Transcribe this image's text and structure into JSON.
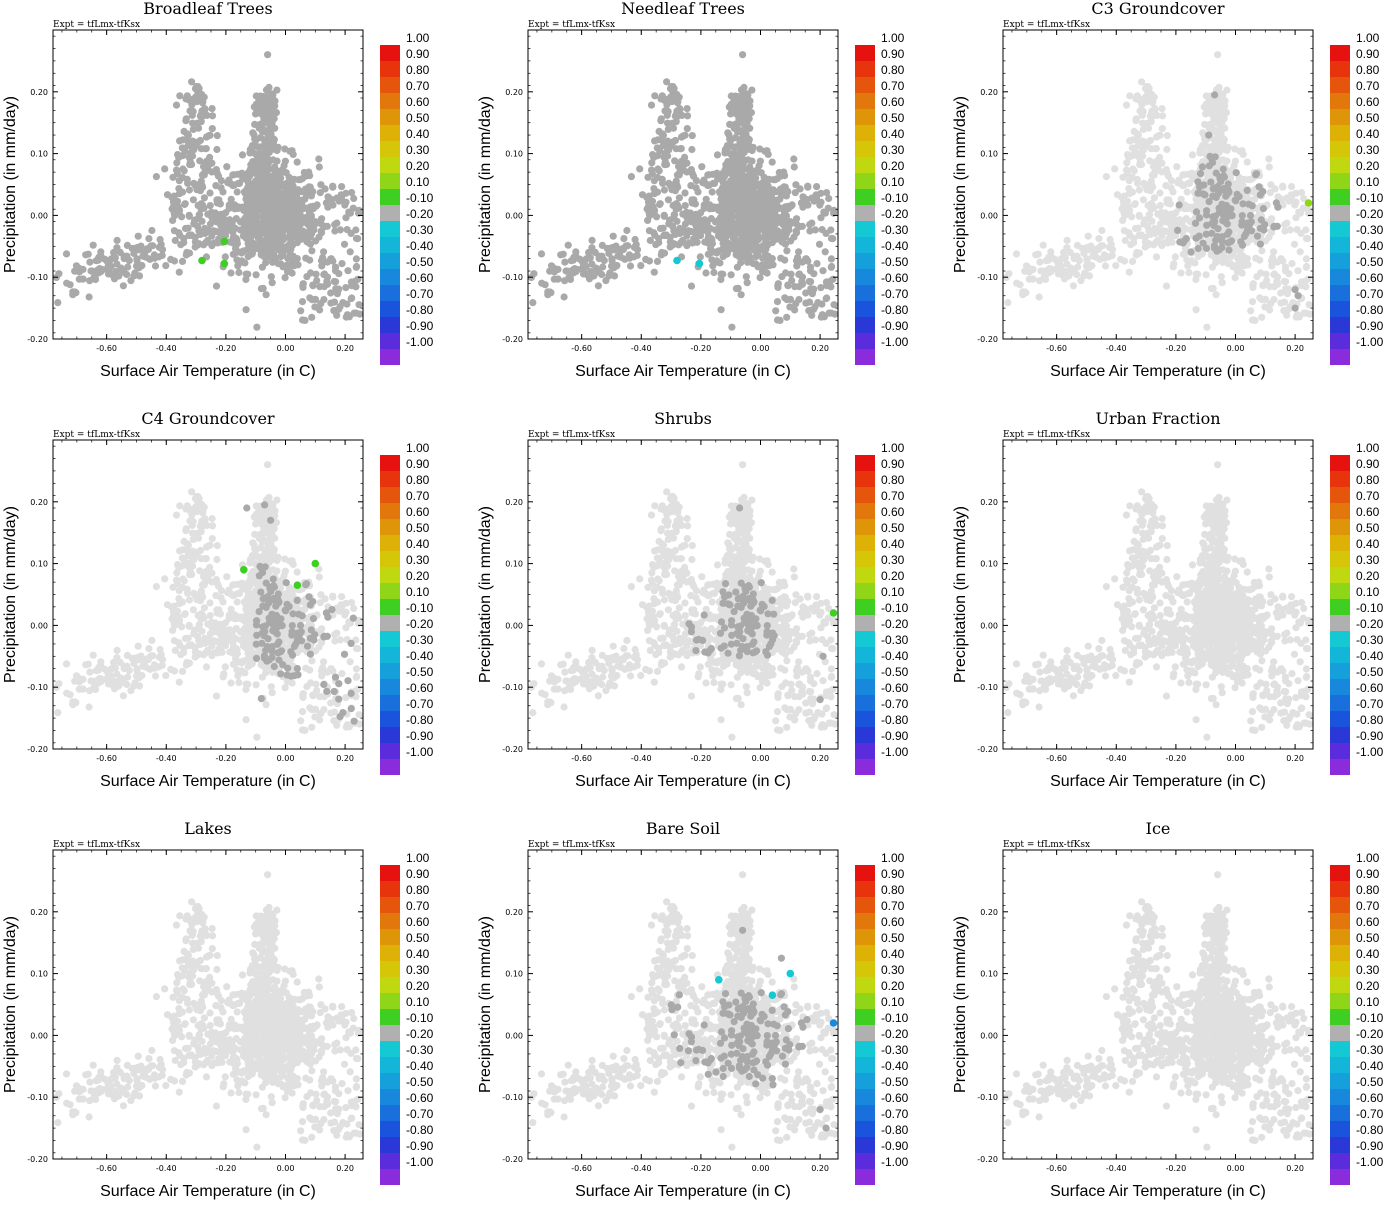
{
  "chart_data": {
    "type": "scatter",
    "expt_label": "Expt = tfLmx-tfKsx",
    "xlabel": "Surface Air Temperature (in C)",
    "ylabel": "Precipitation (in mm/day)",
    "xlim": [
      -0.78,
      0.26
    ],
    "ylim": [
      -0.2,
      0.3
    ],
    "xticks": [
      "-0.60",
      "-0.40",
      "-0.20",
      "0.00",
      "0.20"
    ],
    "yticks": [
      "-0.20",
      "-0.10",
      "0.00",
      "0.10",
      "0.20"
    ],
    "colorbar": {
      "labels": [
        "1.00",
        "0.90",
        "0.80",
        "0.70",
        "0.60",
        "0.50",
        "0.40",
        "0.30",
        "0.20",
        "0.10",
        "-0.10",
        "-0.20",
        "-0.30",
        "-0.40",
        "-0.50",
        "-0.60",
        "-0.70",
        "-0.80",
        "-0.90",
        "-1.00"
      ],
      "colors": [
        "#e6120f",
        "#e8340d",
        "#e5560c",
        "#e2780b",
        "#df9508",
        "#ddb105",
        "#d5c708",
        "#c0d80f",
        "#8fd618",
        "#3fce22",
        "#b0b0b0",
        "#14c8d4",
        "#13b6d8",
        "#159fdb",
        "#1788dc",
        "#1970dc",
        "#1a54dc",
        "#2a38d8",
        "#5a2cdc",
        "#8a2cdc"
      ]
    },
    "base_color_strong": "#a9a9a9",
    "base_color_faint": "#e0e0e0",
    "panels": [
      {
        "title": "Broadleaf Trees",
        "background_tone": "strong",
        "highlights": [
          {
            "x": -0.205,
            "y": -0.042,
            "color": "#3fce22"
          },
          {
            "x": -0.28,
            "y": -0.073,
            "color": "#3fce22"
          },
          {
            "x": -0.205,
            "y": -0.078,
            "color": "#3fce22"
          }
        ]
      },
      {
        "title": "Needleaf Trees",
        "background_tone": "strong",
        "highlights": [
          {
            "x": -0.28,
            "y": -0.073,
            "color": "#14c8d4"
          },
          {
            "x": -0.205,
            "y": -0.078,
            "color": "#14c8d4"
          }
        ]
      },
      {
        "title": "C3 Groundcover",
        "background_tone": "faint",
        "dark_region": {
          "xmin": -0.2,
          "xmax": 0.15,
          "ymin": -0.06,
          "ymax": 0.1
        },
        "dark_points": [
          {
            "x": -0.07,
            "y": 0.195
          },
          {
            "x": -0.09,
            "y": 0.13
          },
          {
            "x": 0.2,
            "y": -0.12
          },
          {
            "x": 0.2,
            "y": -0.15
          },
          {
            "x": 0.21,
            "y": -0.13
          }
        ],
        "highlights": [
          {
            "x": 0.245,
            "y": 0.02,
            "color": "#8fd618"
          }
        ]
      },
      {
        "title": "C4 Groundcover",
        "background_tone": "faint",
        "dark_region": {
          "xmin": -0.1,
          "xmax": 0.24,
          "ymin": -0.15,
          "ymax": 0.1
        },
        "dark_points": [
          {
            "x": -0.07,
            "y": 0.195
          },
          {
            "x": -0.13,
            "y": 0.19
          },
          {
            "x": -0.05,
            "y": 0.17
          },
          {
            "x": 0.22,
            "y": -0.11
          },
          {
            "x": 0.23,
            "y": -0.155
          }
        ],
        "highlights": [
          {
            "x": -0.14,
            "y": 0.09,
            "color": "#3fce22"
          },
          {
            "x": 0.1,
            "y": 0.1,
            "color": "#3fce22"
          },
          {
            "x": 0.04,
            "y": 0.065,
            "color": "#3fce22"
          }
        ]
      },
      {
        "title": "Shrubs",
        "background_tone": "faint",
        "dark_region": {
          "xmin": -0.24,
          "xmax": 0.05,
          "ymin": -0.05,
          "ymax": 0.07
        },
        "dark_points": [
          {
            "x": -0.07,
            "y": 0.19
          },
          {
            "x": 0.2,
            "y": -0.12
          },
          {
            "x": 0.21,
            "y": -0.05
          }
        ],
        "highlights": [
          {
            "x": 0.245,
            "y": 0.02,
            "color": "#3fce22"
          }
        ]
      },
      {
        "title": "Urban Fraction",
        "background_tone": "faint",
        "highlights": []
      },
      {
        "title": "Lakes",
        "background_tone": "faint",
        "highlights": []
      },
      {
        "title": "Bare Soil",
        "background_tone": "faint",
        "dark_region": {
          "xmin": -0.3,
          "xmax": 0.18,
          "ymin": -0.08,
          "ymax": 0.07
        },
        "dark_points": [
          {
            "x": -0.06,
            "y": 0.17
          },
          {
            "x": 0.07,
            "y": 0.125
          },
          {
            "x": 0.2,
            "y": -0.12
          },
          {
            "x": 0.22,
            "y": -0.15
          }
        ],
        "highlights": [
          {
            "x": -0.14,
            "y": 0.09,
            "color": "#14c8d4"
          },
          {
            "x": 0.1,
            "y": 0.1,
            "color": "#14c8d4"
          },
          {
            "x": 0.04,
            "y": 0.065,
            "color": "#14c8d4"
          },
          {
            "x": 0.245,
            "y": 0.02,
            "color": "#1788dc"
          }
        ]
      },
      {
        "title": "Ice",
        "background_tone": "faint",
        "highlights": []
      }
    ]
  }
}
